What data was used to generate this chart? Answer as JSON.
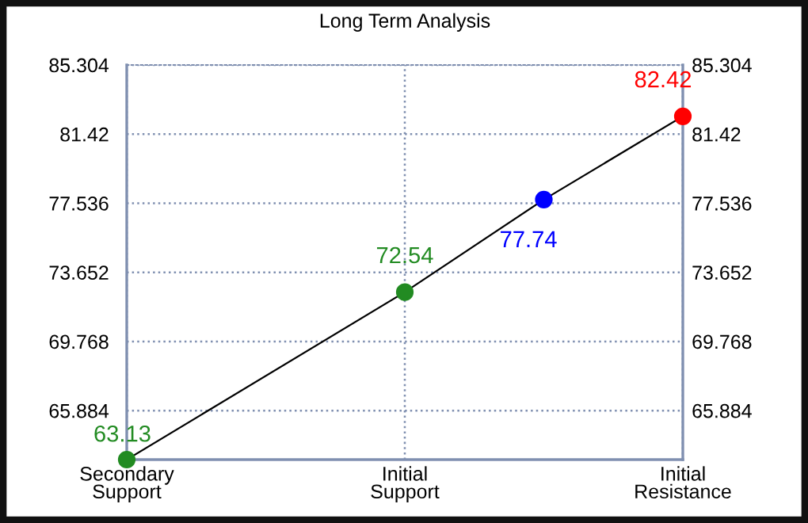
{
  "chart_data": {
    "type": "line",
    "title": "Long Term Analysis",
    "categories": [
      "Secondary\nSupport",
      null,
      "Initial\nSupport",
      null,
      "Initial\nResistance"
    ],
    "series": [
      {
        "color": "#000000",
        "colors": [
          "#228b22",
          null,
          "#228b22",
          "#0000ff",
          "#ff0000"
        ],
        "values": [
          63.13,
          null,
          72.54,
          77.74,
          82.42
        ]
      }
    ],
    "ylim": [
      63.13,
      85.304
    ],
    "yticks": [
      65.884,
      69.768,
      73.652,
      77.536,
      81.42,
      85.304
    ],
    "y2lim": [
      63.13,
      85.304
    ],
    "y2ticks": [
      65.884,
      69.768,
      73.652,
      77.536,
      81.42,
      85.304
    ],
    "grid": true,
    "marker": "circle",
    "line_style": "solid",
    "data_labels": true
  }
}
